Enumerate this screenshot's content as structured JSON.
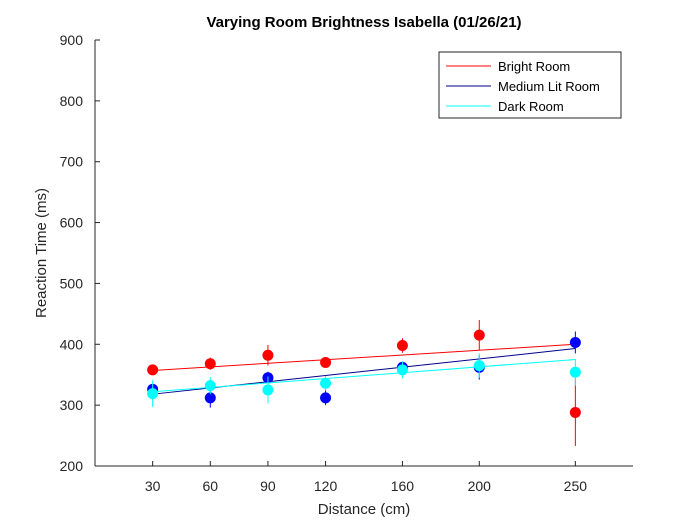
{
  "chart_data": {
    "type": "scatter",
    "title": "Varying Room Brightness Isabella (01/26/21)",
    "xlabel": "Distance (cm)",
    "ylabel": "Reaction Time (ms)",
    "xlim": [
      0,
      280
    ],
    "ylim": [
      200,
      900
    ],
    "xticks": [
      30,
      60,
      90,
      120,
      160,
      200,
      250
    ],
    "yticks": [
      200,
      300,
      400,
      500,
      600,
      700,
      800,
      900
    ],
    "legend_position": "top-right",
    "grid": false,
    "series": [
      {
        "name": "Bright Room",
        "color": "#ff0000",
        "x": [
          30,
          60,
          90,
          120,
          160,
          200,
          250
        ],
        "y": [
          358,
          368,
          382,
          370,
          398,
          415,
          288
        ],
        "err": [
          8,
          10,
          17,
          8,
          12,
          25,
          55
        ],
        "fit": [
          [
            30,
            357
          ],
          [
            250,
            400
          ]
        ]
      },
      {
        "name": "Medium Lit Room",
        "color": "#0000ff",
        "fitColor": "#00008b",
        "x": [
          30,
          60,
          90,
          120,
          160,
          200,
          250
        ],
        "y": [
          326,
          312,
          345,
          312,
          362,
          362,
          403
        ],
        "err": [
          7,
          16,
          10,
          12,
          10,
          20,
          18
        ],
        "fit": [
          [
            30,
            318
          ],
          [
            250,
            393
          ]
        ]
      },
      {
        "name": "Dark Room",
        "color": "#00ffff",
        "x": [
          30,
          60,
          90,
          120,
          160,
          200,
          250
        ],
        "y": [
          319,
          332,
          325,
          336,
          358,
          365,
          354
        ],
        "err": [
          22,
          14,
          22,
          12,
          14,
          20,
          22
        ],
        "fit": [
          [
            30,
            322
          ],
          [
            250,
            375
          ]
        ]
      }
    ]
  }
}
